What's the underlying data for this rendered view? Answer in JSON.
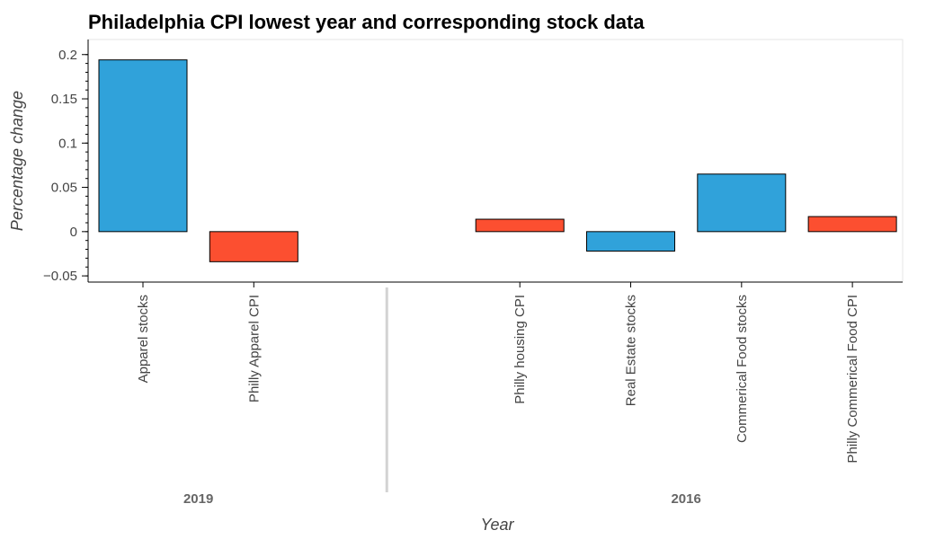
{
  "chart_data": {
    "type": "bar",
    "title": "Philadelphia CPI lowest year and corresponding stock data",
    "xlabel": "Year",
    "ylabel": "Percentage change",
    "ylim": [
      -0.057,
      0.217
    ],
    "yticks": [
      -0.05,
      0,
      0.05,
      0.1,
      0.15,
      0.2
    ],
    "ytick_labels": [
      "−0.05",
      "0",
      "0.05",
      "0.1",
      "0.15",
      "0.2"
    ],
    "groups": [
      {
        "label": "2019",
        "bars": [
          {
            "category": "Apparel stocks",
            "value": 0.194,
            "color": "#30a2da"
          },
          {
            "category": "Philly Apparel CPI",
            "value": -0.034,
            "color": "#fc4f30"
          }
        ]
      },
      {
        "label": "2016",
        "bars": [
          {
            "category": "Philly housing CPI",
            "value": 0.014,
            "color": "#fc4f30"
          },
          {
            "category": "Real Estate stocks",
            "value": -0.022,
            "color": "#30a2da"
          },
          {
            "category": "Commerical Food stocks",
            "value": 0.065,
            "color": "#30a2da"
          },
          {
            "category": "Philly Commerical Food CPI",
            "value": 0.017,
            "color": "#fc4f30"
          }
        ]
      }
    ],
    "grid": false,
    "legend": "none"
  }
}
